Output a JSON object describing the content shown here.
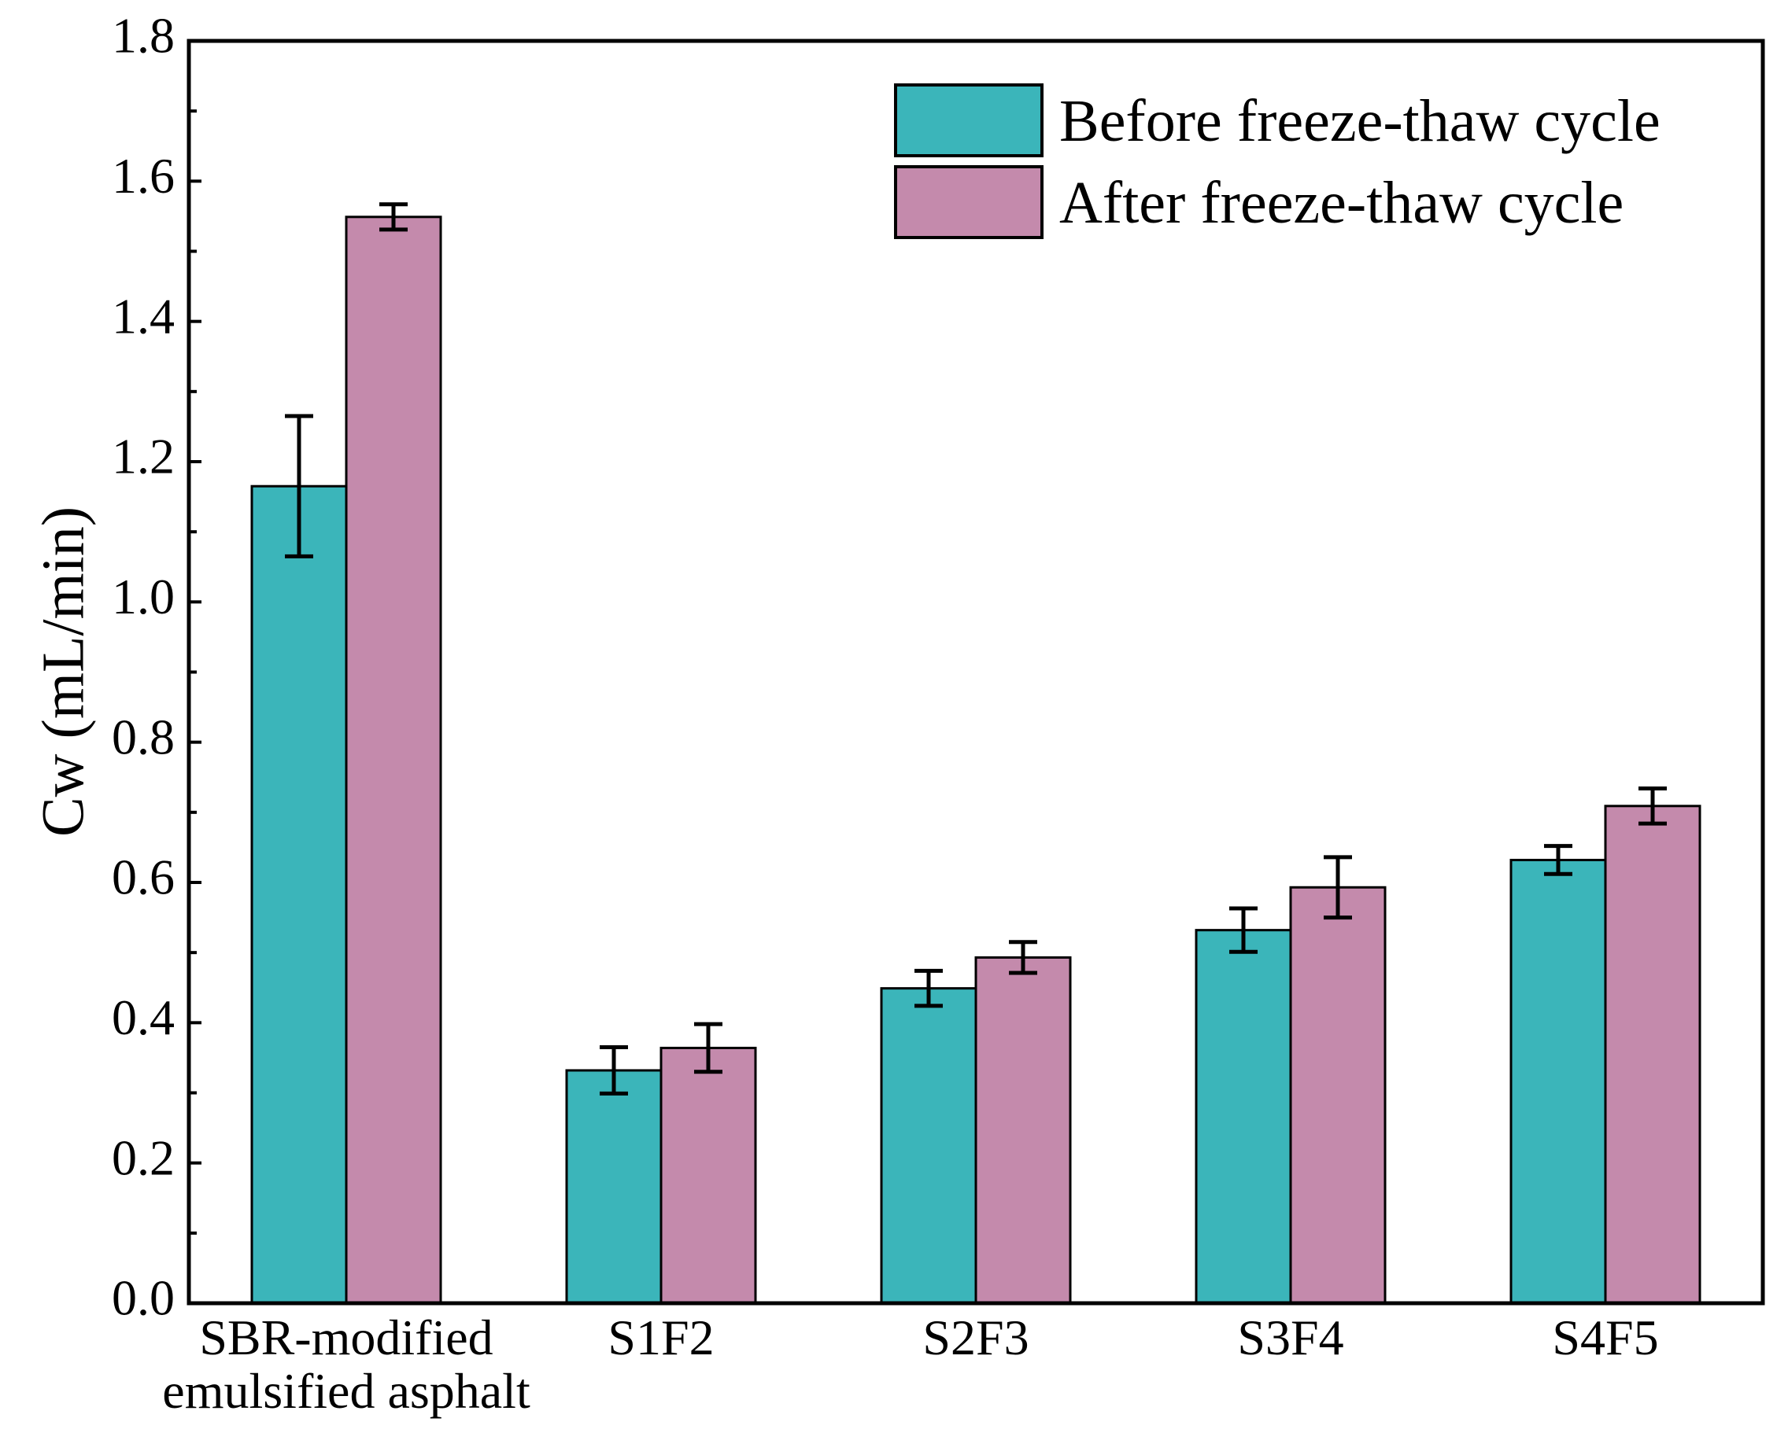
{
  "chart_data": {
    "type": "bar",
    "title": "",
    "xlabel": "",
    "ylabel": "Cw (mL/min)",
    "ylim": [
      0,
      1.8
    ],
    "yticks": [
      "0.0",
      "0.2",
      "0.4",
      "0.6",
      "0.8",
      "1.0",
      "1.2",
      "1.4",
      "1.6",
      "1.8"
    ],
    "categories": [
      [
        "SBR-modified",
        "emulsified asphalt"
      ],
      [
        "S1F2"
      ],
      [
        "S2F3"
      ],
      [
        "S3F4"
      ],
      [
        "S4F5"
      ]
    ],
    "series": [
      {
        "name": "Before freeze-thaw cycle",
        "color": "#3bb5ba",
        "values": [
          1.165,
          0.332,
          0.449,
          0.532,
          0.632
        ],
        "errors": [
          0.1,
          0.033,
          0.025,
          0.031,
          0.02
        ]
      },
      {
        "name": "After freeze-thaw cycle",
        "color": "#c48aac",
        "values": [
          1.549,
          0.364,
          0.493,
          0.593,
          0.709
        ],
        "errors": [
          0.018,
          0.034,
          0.022,
          0.043,
          0.025
        ]
      }
    ],
    "grid": false,
    "legend_position": "top-right"
  }
}
